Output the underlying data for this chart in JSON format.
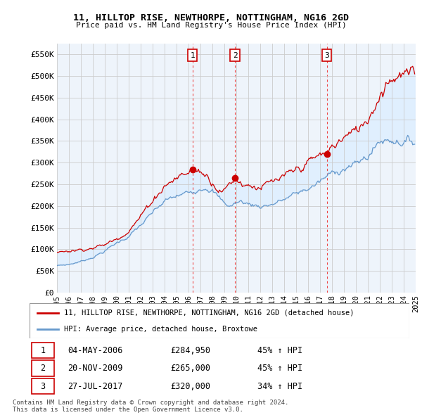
{
  "title": "11, HILLTOP RISE, NEWTHORPE, NOTTINGHAM, NG16 2GD",
  "subtitle": "Price paid vs. HM Land Registry's House Price Index (HPI)",
  "ylabel_ticks": [
    "£0",
    "£50K",
    "£100K",
    "£150K",
    "£200K",
    "£250K",
    "£300K",
    "£350K",
    "£400K",
    "£450K",
    "£500K",
    "£550K"
  ],
  "ytick_values": [
    0,
    50000,
    100000,
    150000,
    200000,
    250000,
    300000,
    350000,
    400000,
    450000,
    500000,
    550000
  ],
  "ylim": [
    0,
    575000
  ],
  "legend_line1": "11, HILLTOP RISE, NEWTHORPE, NOTTINGHAM, NG16 2GD (detached house)",
  "legend_line2": "HPI: Average price, detached house, Broxtowe",
  "red_color": "#cc0000",
  "blue_color": "#6699cc",
  "fill_color": "#ddeeff",
  "vline_color": "#ee4444",
  "bg_color": "#eef4fb",
  "footnote1": "Contains HM Land Registry data © Crown copyright and database right 2024.",
  "footnote2": "This data is licensed under the Open Government Licence v3.0.",
  "transactions": [
    {
      "num": 1,
      "date": "04-MAY-2006",
      "price": 284950,
      "pct": "45%",
      "x": 2006.34
    },
    {
      "num": 2,
      "date": "20-NOV-2009",
      "price": 265000,
      "pct": "45%",
      "x": 2009.89
    },
    {
      "num": 3,
      "date": "27-JUL-2017",
      "price": 320000,
      "pct": "34%",
      "x": 2017.56
    }
  ],
  "xlim": [
    1995.0,
    2025.0
  ],
  "xtick_years": [
    1995,
    1996,
    1997,
    1998,
    1999,
    2000,
    2001,
    2002,
    2003,
    2004,
    2005,
    2006,
    2007,
    2008,
    2009,
    2010,
    2011,
    2012,
    2013,
    2014,
    2015,
    2016,
    2017,
    2018,
    2019,
    2020,
    2021,
    2022,
    2023,
    2024,
    2025
  ]
}
